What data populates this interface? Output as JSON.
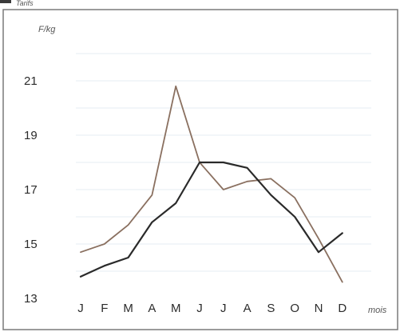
{
  "chart_data": {
    "type": "line",
    "ylabel": "F/kg",
    "xlabel": "mois",
    "top_caption": "Tarifs",
    "categories": [
      "J",
      "F",
      "M",
      "A",
      "M",
      "J",
      "J",
      "A",
      "S",
      "O",
      "N",
      "D"
    ],
    "y_ticks": [
      13,
      15,
      17,
      19,
      21
    ],
    "ylim": [
      13,
      22.5
    ],
    "grid": true,
    "series": [
      {
        "color": "#8a7060",
        "values": [
          14.7,
          15.0,
          15.7,
          16.8,
          20.8,
          18.0,
          17.0,
          17.3,
          17.4,
          16.7,
          15.2,
          13.6
        ]
      },
      {
        "color": "#2a2a2a",
        "values": [
          13.8,
          14.2,
          14.5,
          15.8,
          16.5,
          18.0,
          18.0,
          17.8,
          16.8,
          16.0,
          14.7,
          15.4
        ]
      }
    ]
  }
}
